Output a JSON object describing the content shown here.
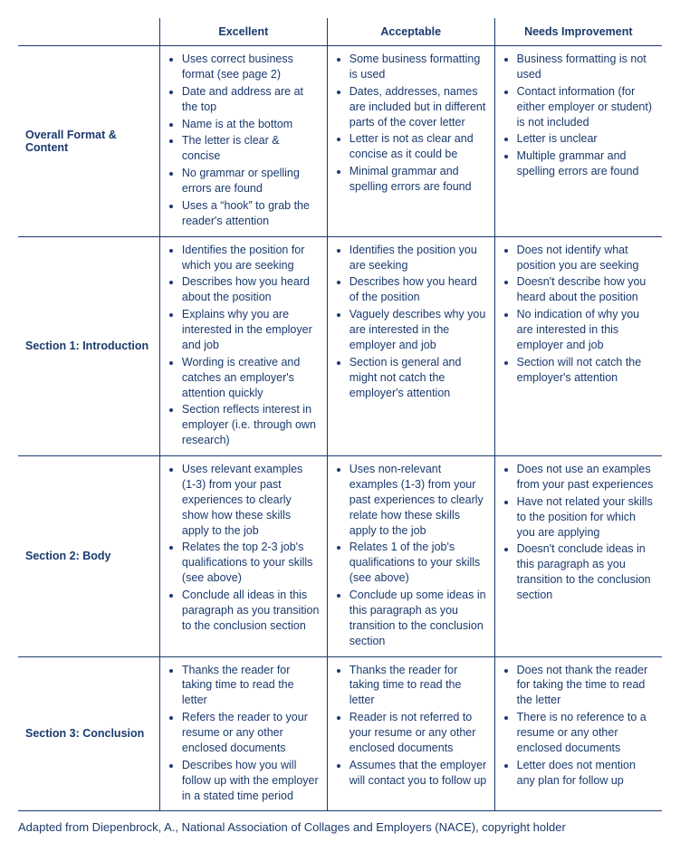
{
  "colors": {
    "text": "#1a3a6e",
    "border": "#1a3a6e",
    "background": "#ffffff"
  },
  "typography": {
    "font_family": "Arial, Helvetica, sans-serif",
    "base_fontsize": 12.5,
    "header_fontweight": "bold",
    "rowlabel_fontweight": "bold"
  },
  "table": {
    "type": "table",
    "columns": [
      "",
      "Excellent",
      "Acceptable",
      "Needs Improvement"
    ],
    "column_widths_pct": [
      22,
      26,
      26,
      26
    ],
    "rows": [
      {
        "label": "Overall Format & Content",
        "excellent": [
          "Uses correct business format (see page 2)",
          "Date and address are at the top",
          "Name is at the bottom",
          "The letter is clear & concise",
          "No grammar or spelling errors are found",
          "Uses a “hook” to grab the reader's attention"
        ],
        "acceptable": [
          "Some business formatting is used",
          "Dates, addresses, names are included but in different parts of the cover letter",
          "Letter is not as clear and concise as it could be",
          "Minimal grammar and spelling errors are found"
        ],
        "needs_improvement": [
          "Business formatting is not used",
          "Contact information (for either employer or student) is not included",
          "Letter is unclear",
          "Multiple grammar and spelling errors are found"
        ]
      },
      {
        "label": "Section 1: Introduction",
        "excellent": [
          "Identifies the position for which you are seeking",
          "Describes how you heard about the position",
          "Explains why you are interested in the employer and job",
          "Wording is creative and catches an employer's attention quickly",
          "Section reflects interest in employer (i.e. through own research)"
        ],
        "acceptable": [
          "Identifies the position you are seeking",
          "Describes how you heard of the position",
          "Vaguely describes why you are interested in the employer and job",
          "Section is general and might not catch the employer's attention"
        ],
        "needs_improvement": [
          "Does not identify what position you are seeking",
          "Doesn't describe how you heard about the position",
          "No indication of why you are interested in this employer and job",
          "Section will not catch the employer's attention"
        ]
      },
      {
        "label": "Section 2: Body",
        "excellent": [
          "Uses relevant examples (1-3) from your past experiences to clearly show how these skills apply to the job",
          "Relates the top 2-3 job's qualifications to your skills (see above)",
          "Conclude all ideas in this paragraph as you transition to the conclusion section"
        ],
        "acceptable": [
          "Uses non-relevant examples (1-3) from your past experiences to clearly relate how these skills apply to the job",
          "Relates 1 of the job's qualifications to your skills (see above)",
          "Conclude up some ideas in this paragraph as you transition to the conclusion section"
        ],
        "needs_improvement": [
          "Does not use an examples from your past experiences",
          "Have not related your skills to the position for which you are applying",
          "Doesn't conclude ideas in this paragraph as you transition to the conclusion section"
        ]
      },
      {
        "label": "Section 3: Conclusion",
        "excellent": [
          "Thanks the reader for taking time to read the letter",
          "Refers the reader to your resume or any other enclosed documents",
          "Describes how you will follow up with the employer in a stated time period"
        ],
        "acceptable": [
          "Thanks the reader for taking time to read the letter",
          "Reader is not referred to your resume or any other enclosed documents",
          "Assumes that the employer will contact you to follow up"
        ],
        "needs_improvement": [
          "Does not thank the reader for taking the time to read the letter",
          "There is no reference to a resume or any other enclosed documents",
          "Letter does not mention any plan for follow up"
        ]
      }
    ]
  },
  "footer_note": "Adapted from Diepenbrock, A., National Association of Collages and Employers (NACE), copyright holder"
}
